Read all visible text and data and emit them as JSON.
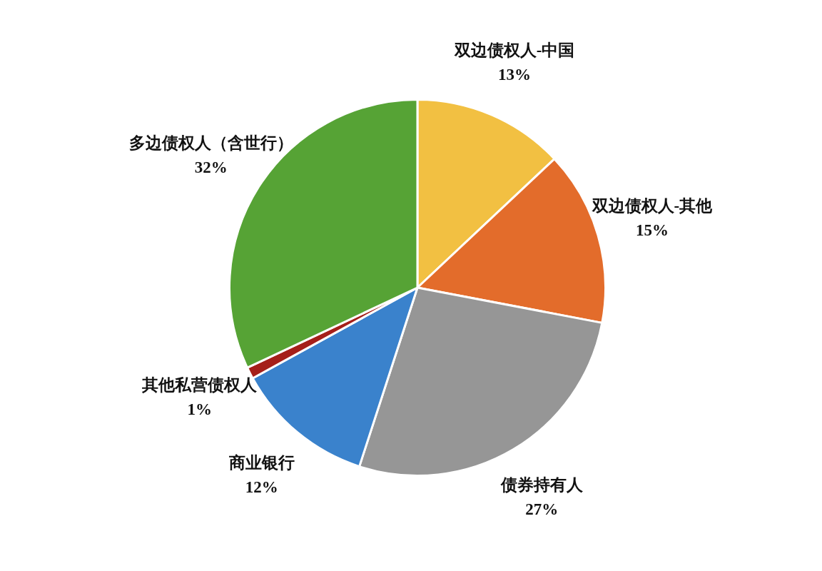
{
  "chart_data": {
    "type": "pie",
    "categories": [
      "双边债权人-中国",
      "双边债权人-其他",
      "债券持有人",
      "商业银行",
      "其他私营债权人",
      "多边债权人（含世行）"
    ],
    "values": [
      13,
      15,
      27,
      12,
      1,
      32
    ],
    "value_labels": [
      "13%",
      "15%",
      "27%",
      "12%",
      "1%",
      "32%"
    ],
    "colors": [
      "#f2c042",
      "#e36c2b",
      "#969696",
      "#3a82cc",
      "#a51f1a",
      "#56a335"
    ]
  }
}
